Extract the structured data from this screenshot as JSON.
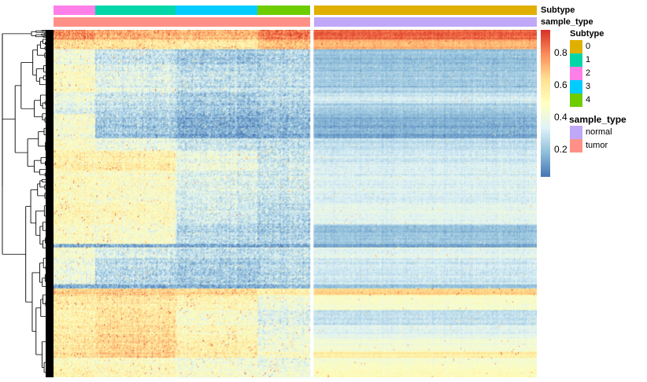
{
  "chart_data": {
    "type": "heatmap",
    "title": "",
    "annotations": [
      {
        "name": "Subtype",
        "label": "Subtype"
      },
      {
        "name": "sample_type",
        "label": "sample_type"
      }
    ],
    "column_groups": [
      {
        "subtype": "2",
        "sample_type": "tumor",
        "n_cols": 53
      },
      {
        "subtype": "1",
        "sample_type": "tumor",
        "n_cols": 102
      },
      {
        "subtype": "3",
        "sample_type": "tumor",
        "n_cols": 104
      },
      {
        "subtype": "4",
        "sample_type": "tumor",
        "n_cols": 66
      },
      {
        "subtype": "0",
        "sample_type": "normal",
        "n_cols": 283
      }
    ],
    "panels": [
      {
        "name": "tumor",
        "groups": [
          0,
          1,
          2,
          3
        ]
      },
      {
        "name": "normal",
        "groups": [
          4
        ]
      }
    ],
    "row_bands": [
      {
        "rows": 9,
        "values": [
          0.78,
          0.72,
          0.7,
          0.82,
          0.85
        ]
      },
      {
        "rows": 9,
        "values": [
          0.62,
          0.6,
          0.58,
          0.7,
          0.72
        ]
      },
      {
        "rows": 14,
        "values": [
          0.42,
          0.3,
          0.22,
          0.25,
          0.2
        ]
      },
      {
        "rows": 26,
        "values": [
          0.48,
          0.36,
          0.28,
          0.28,
          0.22
        ]
      },
      {
        "rows": 10,
        "values": [
          0.4,
          0.3,
          0.22,
          0.26,
          0.3
        ]
      },
      {
        "rows": 10,
        "values": [
          0.35,
          0.26,
          0.2,
          0.22,
          0.22
        ]
      },
      {
        "rows": 22,
        "values": [
          0.45,
          0.22,
          0.15,
          0.18,
          0.16
        ]
      },
      {
        "rows": 12,
        "values": [
          0.48,
          0.4,
          0.3,
          0.28,
          0.28
        ]
      },
      {
        "rows": 18,
        "values": [
          0.55,
          0.56,
          0.4,
          0.32,
          0.32
        ]
      },
      {
        "rows": 30,
        "values": [
          0.5,
          0.48,
          0.35,
          0.32,
          0.34
        ]
      },
      {
        "rows": 20,
        "values": [
          0.52,
          0.5,
          0.32,
          0.26,
          0.36
        ]
      },
      {
        "rows": 18,
        "values": [
          0.48,
          0.46,
          0.26,
          0.24,
          0.2
        ]
      },
      {
        "rows": 3,
        "values": [
          0.12,
          0.12,
          0.12,
          0.12,
          0.12
        ]
      },
      {
        "rows": 10,
        "values": [
          0.45,
          0.35,
          0.28,
          0.3,
          0.36
        ]
      },
      {
        "rows": 24,
        "values": [
          0.4,
          0.26,
          0.22,
          0.26,
          0.3
        ]
      },
      {
        "rows": 4,
        "values": [
          0.15,
          0.15,
          0.15,
          0.18,
          0.2
        ]
      },
      {
        "rows": 6,
        "values": [
          0.64,
          0.66,
          0.62,
          0.55,
          0.65
        ]
      },
      {
        "rows": 14,
        "values": [
          0.56,
          0.58,
          0.52,
          0.42,
          0.45
        ]
      },
      {
        "rows": 14,
        "values": [
          0.54,
          0.6,
          0.46,
          0.35,
          0.28
        ]
      },
      {
        "rows": 12,
        "values": [
          0.56,
          0.62,
          0.5,
          0.4,
          0.35
        ]
      },
      {
        "rows": 12,
        "values": [
          0.58,
          0.64,
          0.54,
          0.42,
          0.42
        ]
      },
      {
        "rows": 6,
        "values": [
          0.6,
          0.66,
          0.56,
          0.48,
          0.56
        ]
      },
      {
        "rows": 10,
        "values": [
          0.5,
          0.5,
          0.44,
          0.4,
          0.46
        ]
      },
      {
        "rows": 8,
        "values": [
          0.54,
          0.52,
          0.46,
          0.44,
          0.5
        ]
      }
    ],
    "colorbar": {
      "min": 0.03,
      "max": 0.94,
      "ticks": [
        "0.8",
        "0.6",
        "0.4",
        "0.2"
      ],
      "tick_values": [
        0.8,
        0.6,
        0.4,
        0.2
      ],
      "palette": [
        "#4575b4",
        "#91bfdb",
        "#e0f3f8",
        "#ffffbf",
        "#fee090",
        "#fc8d59",
        "#d73027"
      ]
    },
    "legends": [
      {
        "title": "Subtype",
        "entries": [
          {
            "label": "0",
            "color": "#e0b000"
          },
          {
            "label": "1",
            "color": "#00d6a8"
          },
          {
            "label": "2",
            "color": "#ff7fe8"
          },
          {
            "label": "3",
            "color": "#00ccff"
          },
          {
            "label": "4",
            "color": "#6fcc00"
          }
        ]
      },
      {
        "title": "sample_type",
        "entries": [
          {
            "label": "normal",
            "color": "#c0a8f8"
          },
          {
            "label": "tumor",
            "color": "#ff9088"
          }
        ]
      }
    ],
    "dendrogram": "rows clustered (hierarchical)",
    "legend_placement": "right"
  }
}
